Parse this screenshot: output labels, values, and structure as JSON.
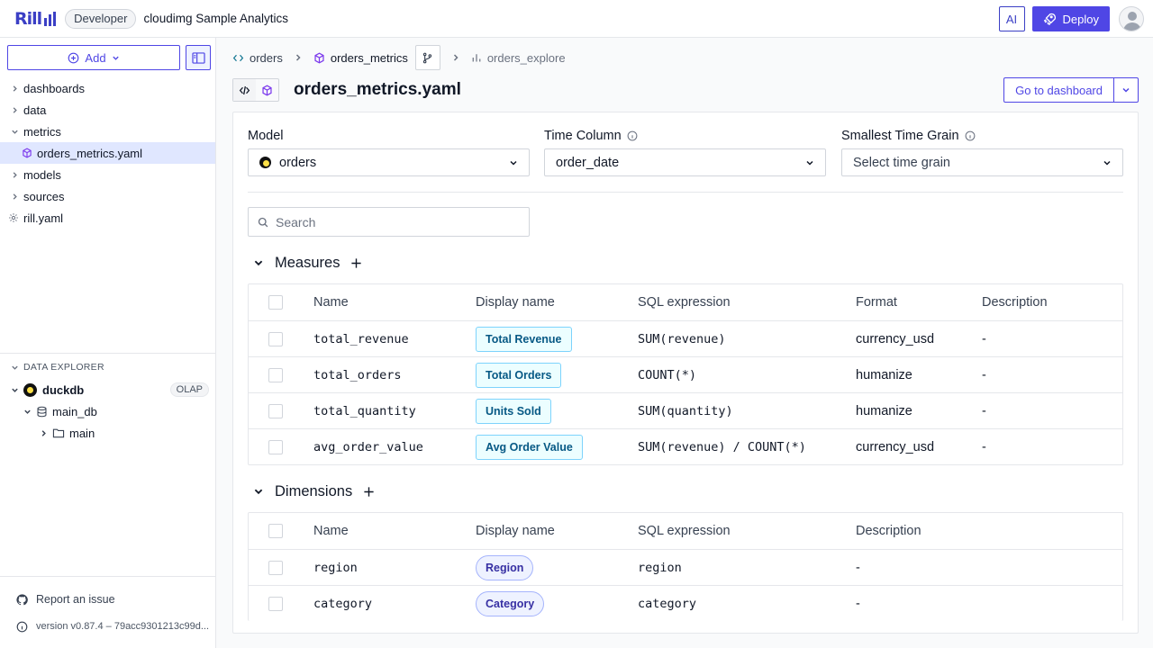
{
  "topbar": {
    "logo": "Rill",
    "env_badge": "Developer",
    "project": "cloudimg Sample Analytics",
    "ai_label": "AI",
    "deploy_label": "Deploy"
  },
  "sidebar": {
    "add_label": "Add",
    "tree": [
      {
        "label": "dashboards",
        "expanded": false
      },
      {
        "label": "data",
        "expanded": false
      },
      {
        "label": "metrics",
        "expanded": true
      },
      {
        "label": "orders_metrics.yaml",
        "child": true,
        "active": true
      },
      {
        "label": "models",
        "expanded": false
      },
      {
        "label": "sources",
        "expanded": false
      },
      {
        "label": "rill.yaml",
        "file": true
      }
    ],
    "explorer": {
      "title": "DATA EXPLORER",
      "connector": "duckdb",
      "connector_badge": "OLAP",
      "database": "main_db",
      "schema": "main"
    },
    "footer": {
      "report": "Report an issue",
      "version": "version v0.87.4 – 79acc9301213c99d..."
    }
  },
  "breadcrumbs": {
    "model": "orders",
    "metrics": "orders_metrics",
    "explore": "orders_explore"
  },
  "editor": {
    "file_title": "orders_metrics.yaml",
    "goto_label": "Go to dashboard"
  },
  "config": {
    "model_label": "Model",
    "model_value": "orders",
    "time_column_label": "Time Column",
    "time_column_value": "order_date",
    "time_grain_label": "Smallest Time Grain",
    "time_grain_placeholder": "Select time grain",
    "search_placeholder": "Search"
  },
  "measures": {
    "title": "Measures",
    "columns": [
      "Name",
      "Display name",
      "SQL expression",
      "Format",
      "Description"
    ],
    "rows": [
      {
        "name": "total_revenue",
        "display": "Total Revenue",
        "sql": "SUM(revenue)",
        "format": "currency_usd",
        "description": "-"
      },
      {
        "name": "total_orders",
        "display": "Total Orders",
        "sql": "COUNT(*)",
        "format": "humanize",
        "description": "-"
      },
      {
        "name": "total_quantity",
        "display": "Units Sold",
        "sql": "SUM(quantity)",
        "format": "humanize",
        "description": "-"
      },
      {
        "name": "avg_order_value",
        "display": "Avg Order Value",
        "sql": "SUM(revenue) / COUNT(*)",
        "format": "currency_usd",
        "description": "-"
      }
    ]
  },
  "dimensions": {
    "title": "Dimensions",
    "columns": [
      "Name",
      "Display name",
      "SQL expression",
      "Description"
    ],
    "rows": [
      {
        "name": "region",
        "display": "Region",
        "sql": "region",
        "description": "-"
      },
      {
        "name": "category",
        "display": "Category",
        "sql": "category",
        "description": "-"
      }
    ]
  }
}
